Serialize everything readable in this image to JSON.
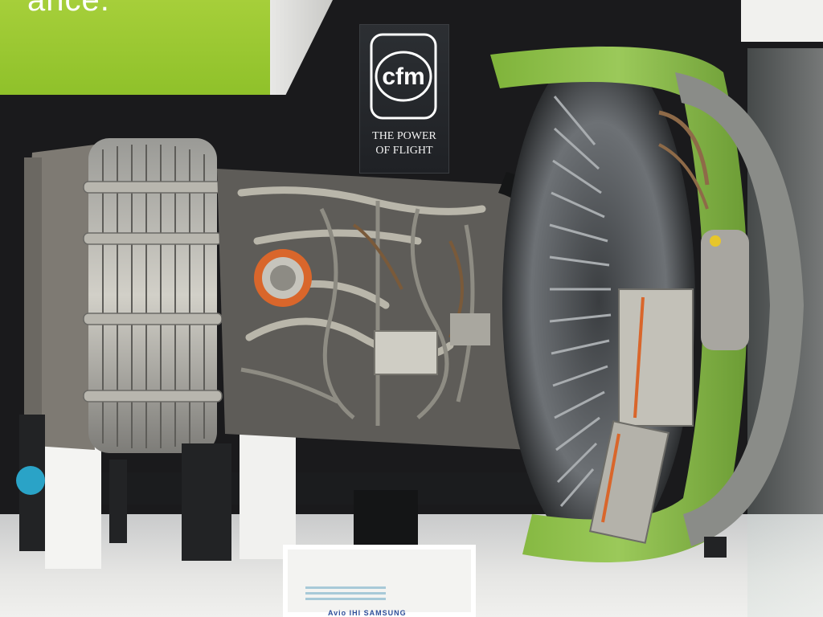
{
  "banner": {
    "text": "ance."
  },
  "sign": {
    "logo_text": "cfm",
    "tagline_line1": "THE POWER",
    "tagline_line2": "OF FLIGHT"
  },
  "placard": {
    "logos": "Avio IHI SAMSUNG"
  },
  "colors": {
    "banner_green": "#9ccb33",
    "engine_accent_green": "#8cc24a",
    "exhaust_ring_orange": "#d9662b",
    "sign_background": "#25282c"
  }
}
